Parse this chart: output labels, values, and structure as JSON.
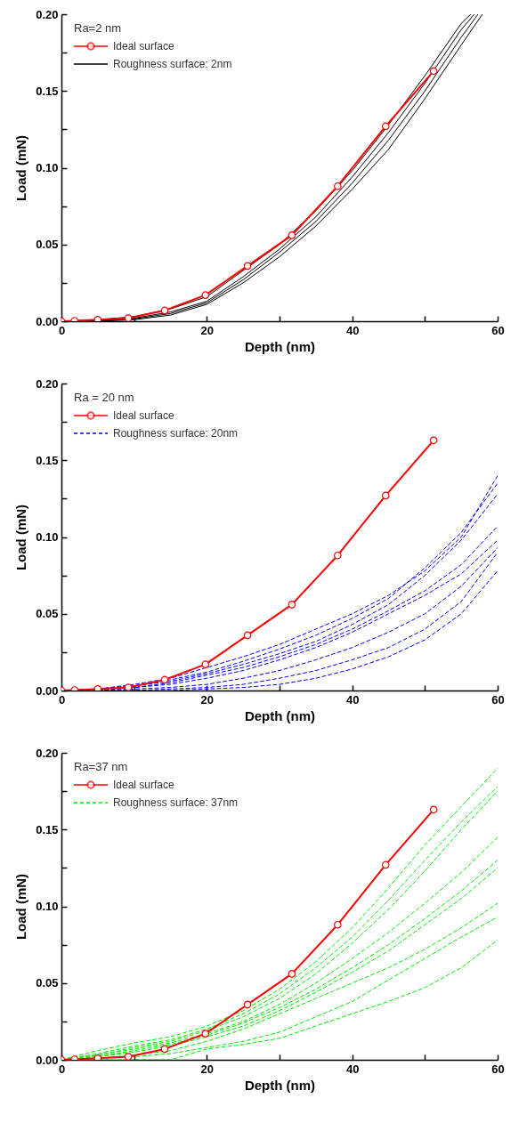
{
  "chart_data": [
    {
      "type": "line",
      "xlabel": "Depth (nm)",
      "ylabel": "Load (mN)",
      "legend_title": "Ra=2 nm",
      "legend": "top left",
      "grid": false,
      "xlim": [
        0,
        60
      ],
      "xticks": [
        0,
        {
          "value": 10,
          "label": null
        },
        20,
        {
          "value": 30,
          "label": null
        },
        40,
        {
          "value": 50,
          "label": null
        },
        60
      ],
      "ylim": [
        0,
        0.2
      ],
      "yticks": [
        "0.00",
        {
          "value": 0.025,
          "label": null
        },
        {
          "value": 0.05,
          "label": "0.05"
        },
        {
          "value": 0.075,
          "label": null
        },
        {
          "value": 0.1,
          "label": "0.10"
        },
        {
          "value": 0.125,
          "label": null
        },
        {
          "value": 0.15,
          "label": "0.15"
        },
        {
          "value": 0.175,
          "label": null
        },
        {
          "value": 0.2,
          "label": "0.20"
        }
      ],
      "series": [
        {
          "name": "Ideal surface",
          "color": "#ff0000",
          "marker": "circle",
          "line_style": "solid",
          "x": [
            0,
            1.8,
            5,
            9.2,
            14.2,
            19.8,
            25.6,
            31.7,
            38,
            44.6,
            51.2
          ],
          "values": [
            0,
            0.0003,
            0.001,
            0.002,
            0.007,
            0.017,
            0.036,
            0.056,
            0.088,
            0.127,
            0.163
          ]
        },
        {
          "name": "Roughness surface: 2nm",
          "color": "#000000",
          "marker": "none",
          "line_style": "solid",
          "x": [
            0,
            5,
            10,
            15,
            20,
            25,
            30,
            35,
            40,
            45,
            50,
            55,
            56.3
          ],
          "values": [
            0,
            0.001,
            0.003,
            0.008,
            0.016,
            0.033,
            0.05,
            0.072,
            0.098,
            0.128,
            0.16,
            0.194,
            0.2
          ]
        },
        {
          "color": "#000000",
          "marker": "none",
          "line_style": "solid",
          "x": [
            0,
            5,
            10,
            15,
            20,
            25,
            30,
            35,
            40,
            45,
            50,
            55,
            56.8
          ],
          "values": [
            0,
            0.0005,
            0.002,
            0.006,
            0.013,
            0.029,
            0.047,
            0.068,
            0.094,
            0.123,
            0.155,
            0.19,
            0.2
          ]
        },
        {
          "color": "#000000",
          "marker": "none",
          "line_style": "solid",
          "x": [
            0,
            5,
            10,
            15,
            20,
            25,
            30,
            35,
            40,
            45,
            50,
            55,
            57.3
          ],
          "values": [
            0,
            0.0003,
            0.0015,
            0.005,
            0.012,
            0.027,
            0.045,
            0.065,
            0.09,
            0.118,
            0.15,
            0.185,
            0.2
          ]
        },
        {
          "color": "#000000",
          "marker": "none",
          "line_style": "solid",
          "x": [
            0,
            5,
            10,
            15,
            20,
            25,
            30,
            35,
            40,
            45,
            50,
            55,
            57.9
          ],
          "values": [
            0,
            0,
            0.001,
            0.004,
            0.011,
            0.025,
            0.042,
            0.062,
            0.086,
            0.112,
            0.145,
            0.18,
            0.2
          ]
        }
      ]
    },
    {
      "type": "line",
      "xlabel": "Depth (nm)",
      "ylabel": "Load (mN)",
      "legend_title": "Ra = 20 nm",
      "legend": "top left",
      "grid": false,
      "xlim": [
        0,
        60
      ],
      "xticks": [
        0,
        {
          "value": 10,
          "label": null
        },
        20,
        {
          "value": 30,
          "label": null
        },
        40,
        {
          "value": 50,
          "label": null
        },
        60
      ],
      "ylim": [
        0,
        0.2
      ],
      "yticks": [
        "0.00",
        {
          "value": 0.025,
          "label": null
        },
        {
          "value": 0.05,
          "label": "0.05"
        },
        {
          "value": 0.075,
          "label": null
        },
        {
          "value": 0.1,
          "label": "0.10"
        },
        {
          "value": 0.125,
          "label": null
        },
        {
          "value": 0.15,
          "label": "0.15"
        },
        {
          "value": 0.175,
          "label": null
        },
        {
          "value": 0.2,
          "label": "0.20"
        }
      ],
      "series": [
        {
          "name": "Ideal surface",
          "color": "#ff0000",
          "marker": "circle",
          "line_style": "solid",
          "x": [
            0,
            1.8,
            5,
            9.2,
            14.2,
            19.8,
            25.6,
            31.7,
            38,
            44.6,
            51.2
          ],
          "values": [
            0,
            0.0003,
            0.001,
            0.002,
            0.007,
            0.017,
            0.036,
            0.056,
            0.088,
            0.127,
            0.163
          ]
        },
        {
          "name": "Roughness surface: 20nm",
          "color": "#0000ff",
          "marker": "none",
          "line_style": "dashed",
          "x": [
            0,
            5,
            10,
            15,
            20,
            25,
            30,
            35,
            40,
            45,
            50,
            55,
            60
          ],
          "values": [
            0,
            0.001,
            0.004,
            0.008,
            0.015,
            0.022,
            0.03,
            0.04,
            0.05,
            0.062,
            0.078,
            0.1,
            0.14
          ]
        },
        {
          "color": "#0000ff",
          "marker": "none",
          "line_style": "dashed",
          "x": [
            0,
            5,
            10,
            15,
            20,
            25,
            30,
            35,
            40,
            45,
            50,
            55,
            60
          ],
          "values": [
            0,
            0.001,
            0.003,
            0.007,
            0.012,
            0.019,
            0.027,
            0.036,
            0.047,
            0.06,
            0.08,
            0.103,
            0.135
          ]
        },
        {
          "color": "#0000ff",
          "marker": "none",
          "line_style": "dashed",
          "x": [
            0,
            5,
            10,
            15,
            20,
            25,
            30,
            35,
            40,
            45,
            50,
            55,
            60
          ],
          "values": [
            0,
            0.001,
            0.003,
            0.006,
            0.011,
            0.017,
            0.024,
            0.032,
            0.043,
            0.056,
            0.075,
            0.098,
            0.128
          ]
        },
        {
          "color": "#0000ff",
          "marker": "none",
          "line_style": "dashed",
          "x": [
            0,
            5,
            10,
            15,
            20,
            25,
            30,
            35,
            40,
            45,
            50,
            55,
            60
          ],
          "values": [
            0,
            0.001,
            0.002,
            0.005,
            0.01,
            0.015,
            0.022,
            0.03,
            0.04,
            0.052,
            0.065,
            0.082,
            0.107
          ]
        },
        {
          "color": "#0000ff",
          "marker": "none",
          "line_style": "dashed",
          "x": [
            0,
            5,
            10,
            15,
            20,
            25,
            30,
            35,
            40,
            45,
            50,
            55,
            60
          ],
          "values": [
            0,
            0,
            0.002,
            0.004,
            0.008,
            0.013,
            0.02,
            0.028,
            0.038,
            0.05,
            0.062,
            0.076,
            0.098
          ]
        },
        {
          "color": "#0000ff",
          "marker": "none",
          "line_style": "dashed",
          "x": [
            0,
            5,
            10,
            15,
            20,
            25,
            30,
            35,
            40,
            45,
            50,
            55,
            60
          ],
          "values": [
            0,
            0,
            0.001,
            0.002,
            0.004,
            0.008,
            0.013,
            0.02,
            0.028,
            0.038,
            0.05,
            0.068,
            0.093
          ]
        },
        {
          "color": "#0000ff",
          "marker": "none",
          "line_style": "dashed",
          "x": [
            0,
            5,
            10,
            15,
            20,
            25,
            30,
            35,
            40,
            45,
            50,
            55,
            60
          ],
          "values": [
            0,
            0,
            0,
            0.001,
            0.002,
            0.004,
            0.008,
            0.013,
            0.02,
            0.028,
            0.04,
            0.058,
            0.09
          ]
        },
        {
          "color": "#0000ff",
          "marker": "none",
          "line_style": "dashed",
          "x": [
            0,
            5,
            10,
            15,
            20,
            25,
            30,
            35,
            40,
            45,
            50,
            55,
            60
          ],
          "values": [
            0,
            0,
            0,
            0,
            0.001,
            0.002,
            0.004,
            0.008,
            0.014,
            0.022,
            0.033,
            0.05,
            0.078
          ]
        }
      ]
    },
    {
      "type": "line",
      "xlabel": "Depth (nm)",
      "ylabel": "Load (mN)",
      "legend_title": "Ra=37 nm",
      "legend": "top left",
      "grid": false,
      "xlim": [
        0,
        60
      ],
      "xticks": [
        0,
        {
          "value": 10,
          "label": null
        },
        20,
        {
          "value": 30,
          "label": null
        },
        40,
        {
          "value": 50,
          "label": null
        },
        60
      ],
      "ylim": [
        0,
        0.2
      ],
      "yticks": [
        "0.00",
        {
          "value": 0.025,
          "label": null
        },
        {
          "value": 0.05,
          "label": "0.05"
        },
        {
          "value": 0.075,
          "label": null
        },
        {
          "value": 0.1,
          "label": "0.10"
        },
        {
          "value": 0.125,
          "label": null
        },
        {
          "value": 0.15,
          "label": "0.15"
        },
        {
          "value": 0.175,
          "label": null
        },
        {
          "value": 0.2,
          "label": "0.20"
        }
      ],
      "series": [
        {
          "name": "Ideal surface",
          "color": "#ff0000",
          "marker": "circle",
          "line_style": "solid",
          "x": [
            0,
            1.8,
            5,
            9.2,
            14.2,
            19.8,
            25.6,
            31.7,
            38,
            44.6,
            51.2
          ],
          "values": [
            0,
            0.0003,
            0.001,
            0.002,
            0.007,
            0.017,
            0.036,
            0.056,
            0.088,
            0.127,
            0.163
          ]
        },
        {
          "name": "Roughness surface: 37nm",
          "color": "#00ee00",
          "marker": "none",
          "line_style": "dashed",
          "x": [
            0,
            5,
            10,
            15,
            20,
            25,
            30,
            35,
            40,
            45,
            50,
            55,
            60
          ],
          "values": [
            0,
            0.006,
            0.011,
            0.015,
            0.022,
            0.032,
            0.046,
            0.064,
            0.086,
            0.112,
            0.14,
            0.165,
            0.19
          ]
        },
        {
          "color": "#00ee00",
          "marker": "none",
          "line_style": "dashed",
          "x": [
            0,
            5,
            10,
            15,
            20,
            25,
            30,
            35,
            40,
            45,
            50,
            55,
            60
          ],
          "values": [
            0,
            0.004,
            0.009,
            0.013,
            0.02,
            0.03,
            0.043,
            0.06,
            0.08,
            0.104,
            0.13,
            0.155,
            0.178
          ]
        },
        {
          "color": "#00ee00",
          "marker": "none",
          "line_style": "dashed",
          "x": [
            0,
            5,
            10,
            15,
            20,
            25,
            30,
            35,
            40,
            45,
            50,
            55,
            60
          ],
          "values": [
            0,
            0.003,
            0.008,
            0.012,
            0.019,
            0.028,
            0.04,
            0.056,
            0.076,
            0.098,
            0.123,
            0.15,
            0.175
          ]
        },
        {
          "color": "#00ee00",
          "marker": "none",
          "line_style": "dashed",
          "x": [
            0,
            5,
            10,
            15,
            20,
            25,
            30,
            35,
            40,
            45,
            50,
            55,
            60
          ],
          "values": [
            0,
            0.003,
            0.007,
            0.011,
            0.017,
            0.025,
            0.036,
            0.05,
            0.066,
            0.083,
            0.102,
            0.122,
            0.145
          ]
        },
        {
          "color": "#00ee00",
          "marker": "none",
          "line_style": "dashed",
          "x": [
            0,
            5,
            10,
            15,
            20,
            25,
            30,
            35,
            40,
            45,
            50,
            55,
            60
          ],
          "values": [
            0,
            0.002,
            0.006,
            0.01,
            0.016,
            0.024,
            0.034,
            0.046,
            0.06,
            0.075,
            0.092,
            0.11,
            0.13
          ]
        },
        {
          "color": "#00ee00",
          "marker": "none",
          "line_style": "dashed",
          "x": [
            0,
            5,
            10,
            15,
            20,
            25,
            30,
            35,
            40,
            45,
            50,
            55,
            60
          ],
          "values": [
            0,
            0.002,
            0.005,
            0.009,
            0.015,
            0.022,
            0.032,
            0.044,
            0.057,
            0.071,
            0.088,
            0.105,
            0.125
          ]
        },
        {
          "color": "#00ee00",
          "marker": "none",
          "line_style": "dashed",
          "x": [
            0,
            5,
            10,
            15,
            20,
            25,
            30,
            35,
            40,
            45,
            50,
            55,
            60
          ],
          "values": [
            0,
            0.001,
            0.003,
            0.006,
            0.012,
            0.02,
            0.03,
            0.04,
            0.05,
            0.06,
            0.072,
            0.086,
            0.102
          ]
        },
        {
          "color": "#00ee00",
          "marker": "none",
          "line_style": "dashed",
          "x": [
            0,
            5,
            10,
            15,
            20,
            25,
            30,
            35,
            40,
            45,
            50,
            55,
            60
          ],
          "values": [
            0,
            0.001,
            0.002,
            0.004,
            0.008,
            0.012,
            0.018,
            0.028,
            0.038,
            0.052,
            0.066,
            0.08,
            0.093
          ]
        },
        {
          "color": "#00ee00",
          "marker": "none",
          "line_style": "dashed",
          "x": [
            0,
            5,
            10,
            15,
            20,
            25,
            30,
            35,
            40,
            45,
            50,
            55,
            60
          ],
          "values": [
            0,
            0,
            0,
            0,
            0.007,
            0.01,
            0.014,
            0.022,
            0.03,
            0.038,
            0.047,
            0.06,
            0.078
          ]
        }
      ]
    }
  ]
}
